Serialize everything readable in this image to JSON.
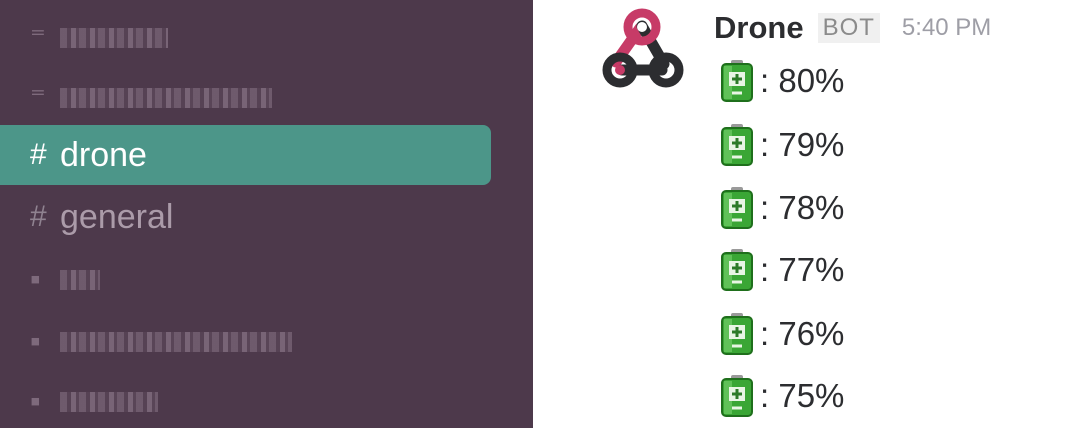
{
  "sidebar": {
    "channels": [
      {
        "hash": "",
        "label": "",
        "blurred": true,
        "active": false
      },
      {
        "hash": "",
        "label": "",
        "blurred": true,
        "active": false
      },
      {
        "hash": "#",
        "label": "drone",
        "blurred": false,
        "active": true
      },
      {
        "hash": "#",
        "label": "general",
        "blurred": false,
        "active": false
      },
      {
        "hash": "",
        "label": "",
        "blurred": true,
        "active": false
      },
      {
        "hash": "",
        "label": "",
        "blurred": true,
        "active": false
      },
      {
        "hash": "",
        "label": "",
        "blurred": true,
        "active": false
      }
    ],
    "colors": {
      "background": "#4d394b",
      "active": "#4c9689"
    }
  },
  "message": {
    "username": "Drone",
    "badge": "BOT",
    "time": "5:40 PM",
    "avatar_icon": "webhook-icon",
    "lines": [
      {
        "icon": "battery-icon",
        "text": ": 80%"
      },
      {
        "icon": "battery-icon",
        "text": ": 79%"
      },
      {
        "icon": "battery-icon",
        "text": ": 78%"
      },
      {
        "icon": "battery-icon",
        "text": ": 77%"
      },
      {
        "icon": "battery-icon",
        "text": ": 76%"
      },
      {
        "icon": "battery-icon",
        "text": ": 75%"
      }
    ]
  }
}
